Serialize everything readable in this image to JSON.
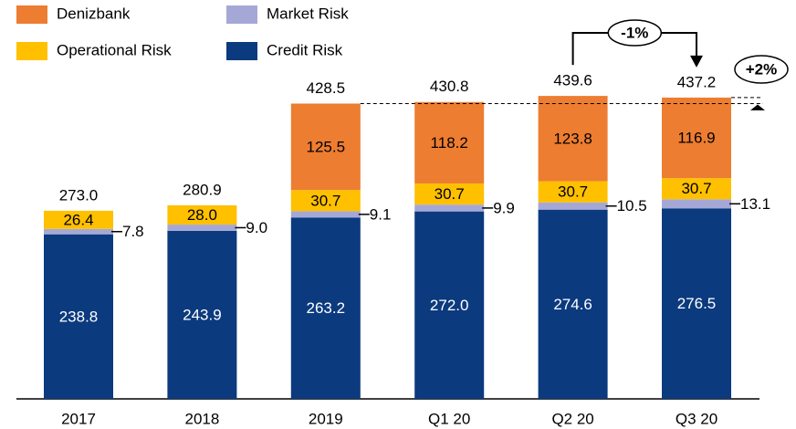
{
  "chart_data": {
    "type": "stacked-bar",
    "categories": [
      "2017",
      "2018",
      "2019",
      "Q1 20",
      "Q2 20",
      "Q3 20"
    ],
    "series": [
      {
        "name": "Credit Risk",
        "color": "#0b3a7e",
        "values": [
          238.8,
          243.9,
          263.2,
          272.0,
          274.6,
          276.5
        ],
        "value_labels": [
          "238.8",
          "243.9",
          "263.2",
          "272.0",
          "274.6",
          "276.5"
        ]
      },
      {
        "name": "Market Risk",
        "color": "#a5a8d6",
        "values": [
          7.8,
          9.0,
          9.1,
          9.9,
          10.5,
          13.1
        ],
        "value_labels": [
          "7.8",
          "9.0",
          "9.1",
          "9.9",
          "10.5",
          "13.1"
        ]
      },
      {
        "name": "Operational Risk",
        "color": "#ffc000",
        "values": [
          26.4,
          28.0,
          30.7,
          30.7,
          30.7,
          30.7
        ],
        "value_labels": [
          "26.4",
          "28.0",
          "30.7",
          "30.7",
          "30.7",
          "30.7"
        ]
      },
      {
        "name": "Denizbank",
        "color": "#ed7d31",
        "values": [
          null,
          null,
          125.5,
          118.2,
          123.8,
          116.9
        ],
        "value_labels": [
          null,
          null,
          "125.5",
          "118.2",
          "123.8",
          "116.9"
        ]
      }
    ],
    "totals": [
      273.0,
      280.9,
      428.5,
      430.8,
      439.6,
      437.2
    ],
    "total_labels": [
      "273.0",
      "280.9",
      "428.5",
      "430.8",
      "439.6",
      "437.2"
    ],
    "annotations": [
      "-1%",
      "+2%"
    ]
  }
}
